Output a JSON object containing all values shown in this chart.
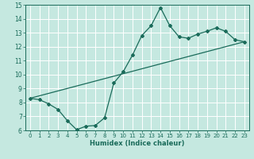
{
  "xlabel": "Humidex (Indice chaleur)",
  "xlim": [
    -0.5,
    23.5
  ],
  "ylim": [
    6,
    15
  ],
  "xticks": [
    0,
    1,
    2,
    3,
    4,
    5,
    6,
    7,
    8,
    9,
    10,
    11,
    12,
    13,
    14,
    15,
    16,
    17,
    18,
    19,
    20,
    21,
    22,
    23
  ],
  "yticks": [
    6,
    7,
    8,
    9,
    10,
    11,
    12,
    13,
    14,
    15
  ],
  "bg_color": "#c5e8e0",
  "line_color": "#1a6b5a",
  "grid_color": "#ffffff",
  "line1_x": [
    0,
    1,
    2,
    3,
    4,
    5,
    6,
    7,
    8,
    9,
    10,
    11,
    12,
    13,
    14,
    15,
    16,
    17,
    18,
    19,
    20,
    21,
    22,
    23
  ],
  "line1_y": [
    8.3,
    8.2,
    7.9,
    7.5,
    6.7,
    6.05,
    6.3,
    6.35,
    6.9,
    9.4,
    10.2,
    11.4,
    12.8,
    13.5,
    14.8,
    13.5,
    12.7,
    12.6,
    12.9,
    13.1,
    13.35,
    13.1,
    12.5,
    12.35
  ],
  "line2_x": [
    0,
    23
  ],
  "line2_y": [
    8.3,
    12.35
  ],
  "marker": "D",
  "markersize": 2.0,
  "linewidth": 0.9
}
